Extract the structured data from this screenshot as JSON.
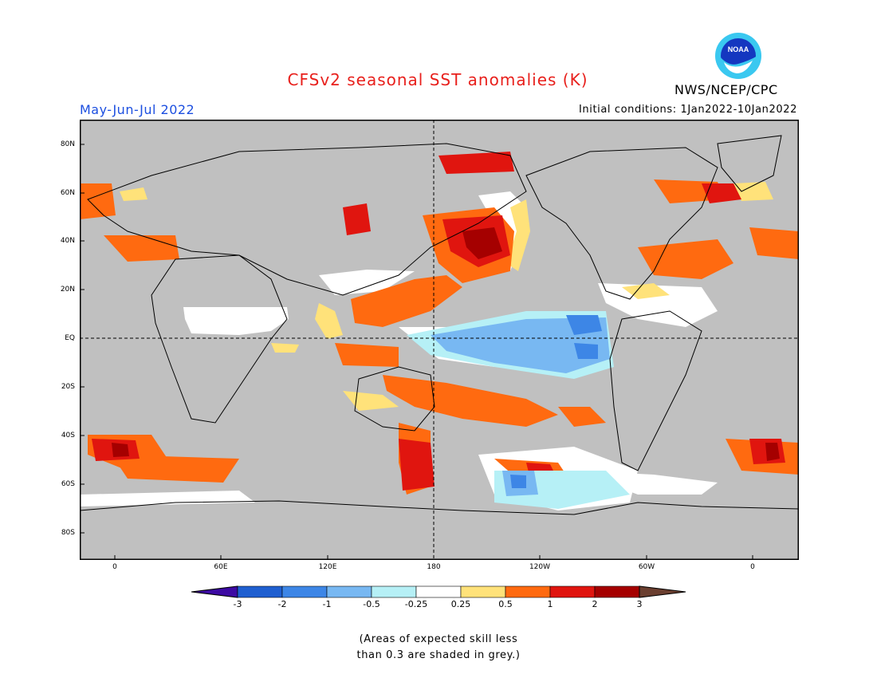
{
  "title": "CFSv2 seasonal SST anomalies (K)",
  "agency": "NWS/NCEP/CPC",
  "logo_text": "NOAA",
  "season": "May-Jun-Jul 2022",
  "initial_conditions": "Initial conditions: 1Jan2022-10Jan2022",
  "lat_labels": [
    "80N",
    "60N",
    "40N",
    "20N",
    "EQ",
    "20S",
    "40S",
    "60S",
    "80S"
  ],
  "lon_labels": [
    "0",
    "60E",
    "120E",
    "180",
    "120W",
    "60W",
    "0"
  ],
  "colorbar": {
    "labels": [
      "-3",
      "-2",
      "-1",
      "-0.5",
      "-0.25",
      "0.25",
      "0.5",
      "1",
      "2",
      "3"
    ],
    "colors": [
      "#3d0aa3",
      "#1f5fd0",
      "#3d86e6",
      "#78b8f2",
      "#b6f0f6",
      "#ffffff",
      "#ffe27a",
      "#ff6a10",
      "#e0150f",
      "#a50000",
      "#6b3f30"
    ]
  },
  "note_lines": [
    "(Areas of expected skill less",
    "than 0.3 are shaded in grey.)"
  ],
  "colors": {
    "title": "#e8201c",
    "season": "#1c4fe0",
    "grey_mask": "#c0c0c0"
  }
}
